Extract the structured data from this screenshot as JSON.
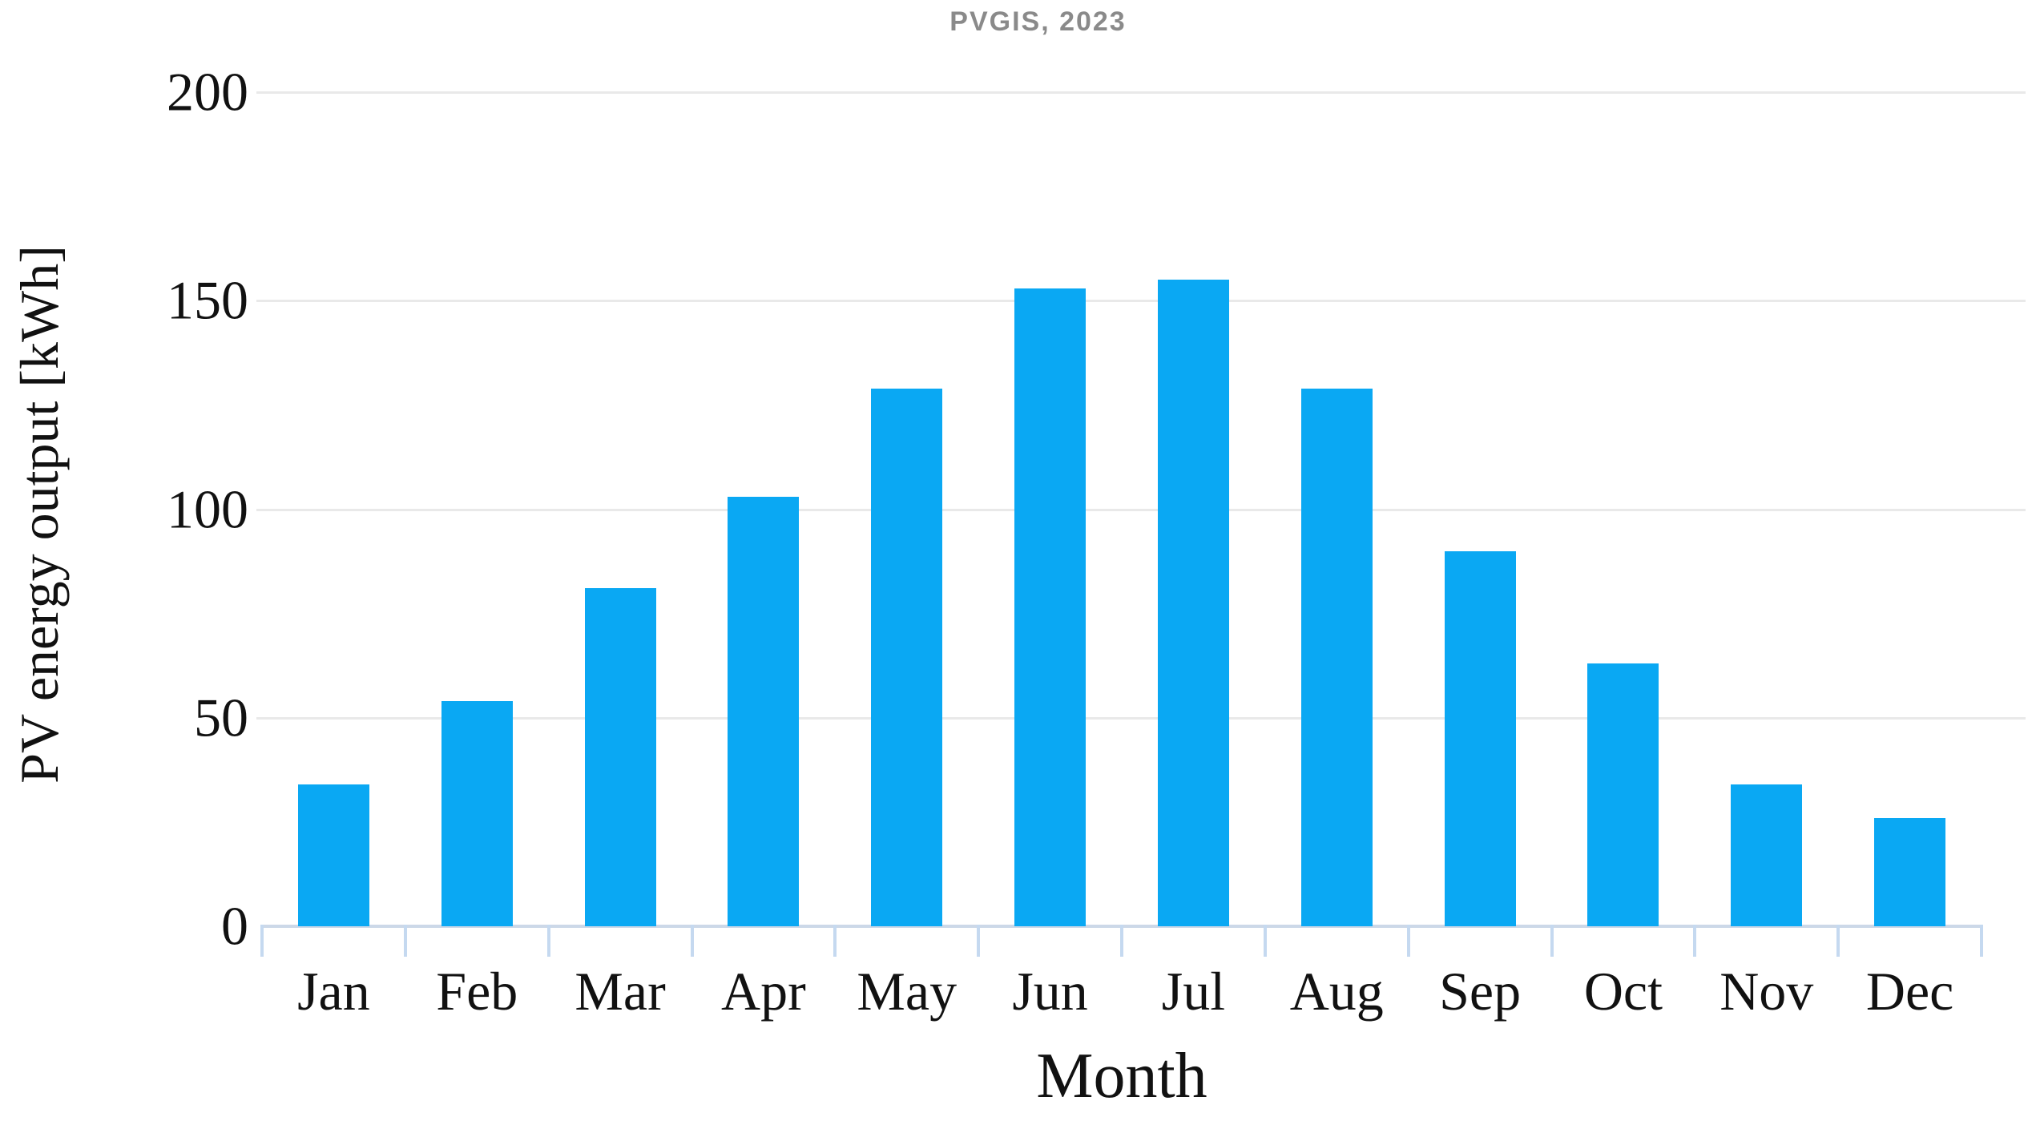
{
  "chart_data": {
    "type": "bar",
    "title": "PVGIS, 2023",
    "categories": [
      "Jan",
      "Feb",
      "Mar",
      "Apr",
      "May",
      "Jun",
      "Jul",
      "Aug",
      "Sep",
      "Oct",
      "Nov",
      "Dec"
    ],
    "values": [
      34,
      54,
      81,
      103,
      129,
      153,
      155,
      129,
      90,
      63,
      34,
      26
    ],
    "xlabel": "Month",
    "ylabel": "PV energy output [kWh]",
    "ylim": [
      0,
      200
    ],
    "yticks": [
      0,
      50,
      100,
      150,
      200
    ],
    "grid": "horizontal",
    "legend": "none"
  },
  "colors": {
    "bar": "#0aa8f3",
    "gridline": "#e9e9e9",
    "axis_line": "#ccd8e8",
    "tick_mark": "#c5d9f0",
    "title_text": "#8a8a8a",
    "label_text": "#111111"
  }
}
